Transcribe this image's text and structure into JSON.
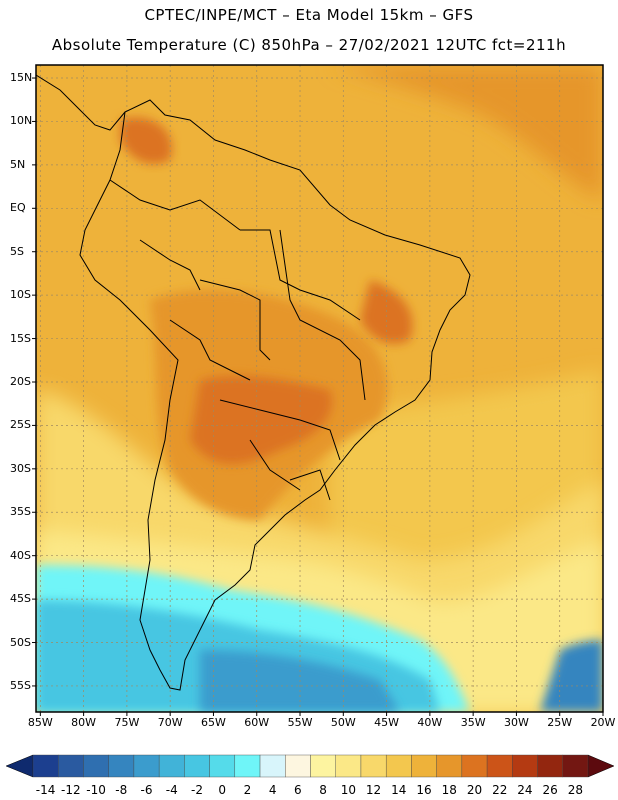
{
  "header": {
    "line1": "CPTEC/INPE/MCT –  Eta Model 15km – GFS",
    "line2": "Absolute Temperature (C) 850hPa – 27/02/2021 12UTC fct=211h"
  },
  "map": {
    "lat_labels": [
      "15N",
      "10N",
      "5N",
      "EQ",
      "5S",
      "10S",
      "15S",
      "20S",
      "25S",
      "30S",
      "35S",
      "40S",
      "45S",
      "50S",
      "55S"
    ],
    "lon_labels": [
      "85W",
      "80W",
      "75W",
      "70W",
      "65W",
      "60W",
      "55W",
      "50W",
      "45W",
      "40W",
      "35W",
      "30W",
      "25W",
      "20W"
    ],
    "lat_values": [
      15,
      10,
      5,
      0,
      -5,
      -10,
      -15,
      -20,
      -25,
      -30,
      -35,
      -40,
      -45,
      -50,
      -55
    ],
    "lon_values": [
      -85,
      -80,
      -75,
      -70,
      -65,
      -60,
      -55,
      -50,
      -45,
      -40,
      -35,
      -30,
      -25,
      -20
    ],
    "extent": {
      "lon_min": -85.5,
      "lon_max": -20,
      "lat_min": -58,
      "lat_max": 16.5
    }
  },
  "colorbar": {
    "labels": [
      "-14",
      "-12",
      "-10",
      "-8",
      "-6",
      "-4",
      "-2",
      "0",
      "2",
      "4",
      "6",
      "8",
      "10",
      "12",
      "14",
      "16",
      "18",
      "20",
      "22",
      "24",
      "26",
      "28"
    ],
    "colors": [
      "#1c3f8f",
      "#2a5aa0",
      "#2f6fb0",
      "#3585bf",
      "#3b9ccd",
      "#41b3d8",
      "#47c6e2",
      "#55dbea",
      "#6ff5f8",
      "#d8f5fb",
      "#fdf6e0",
      "#fdf4a0",
      "#fbe887",
      "#f8d86a",
      "#f3c74e",
      "#eeb23a",
      "#e6962b",
      "#dc7320",
      "#cc5418",
      "#b43a12",
      "#93260f",
      "#731712"
    ],
    "under_color": "#0f2a6e",
    "over_color": "#5c0a0e"
  }
}
